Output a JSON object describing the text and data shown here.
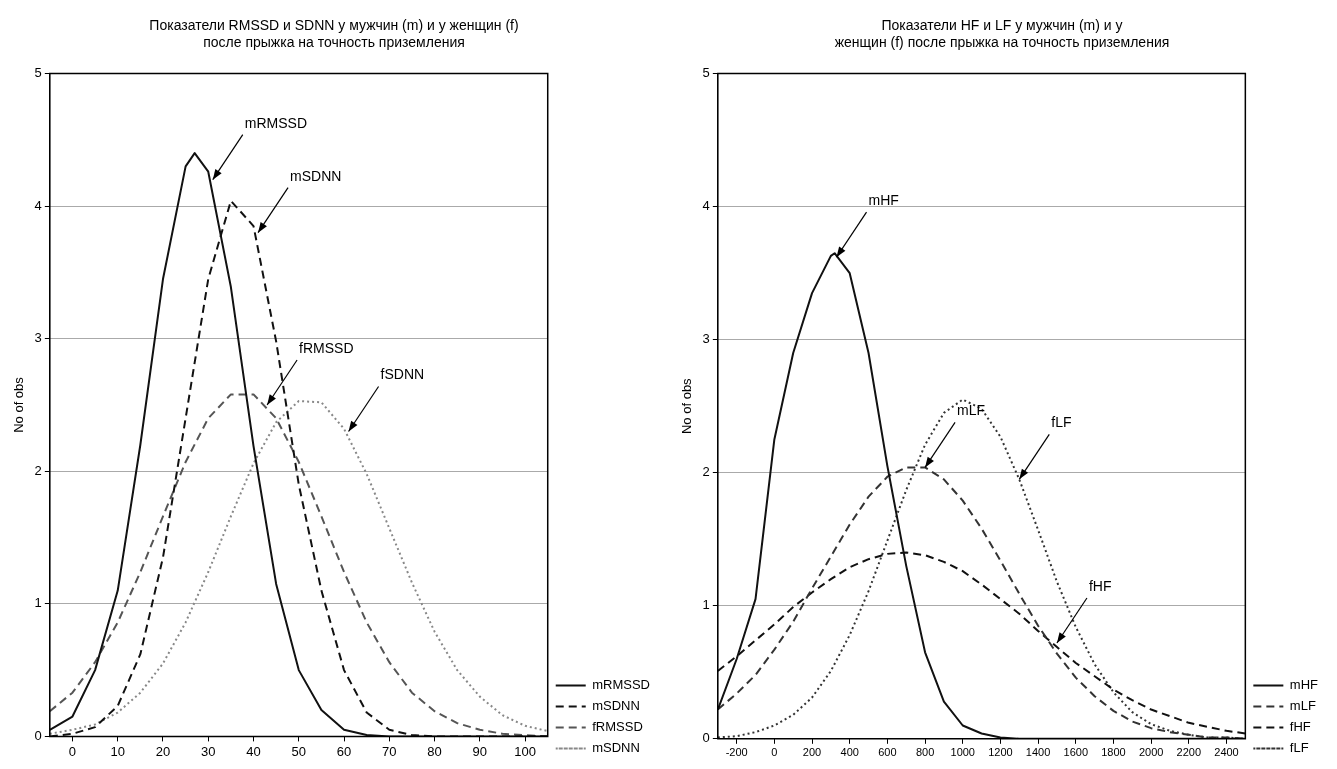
{
  "chart_data": [
    {
      "type": "line",
      "title": "Показатели RMSSD и SDNN у мужчин (m) и у женщин (f)\nпосле прыжка на точность приземления",
      "ylabel": "No of obs",
      "xlim": [
        -5,
        105
      ],
      "xticks": [
        0,
        10,
        20,
        30,
        40,
        50,
        60,
        70,
        80,
        90,
        100
      ],
      "ylim": [
        0,
        5
      ],
      "yticks": [
        0,
        1,
        2,
        3,
        4,
        5
      ],
      "grid": "y",
      "legend": "bottom right",
      "series": [
        {
          "name": "mRMSSD",
          "color": "#111111",
          "line_style": "solid",
          "x": [
            -5,
            0,
            5,
            10,
            15,
            20,
            25,
            27,
            30,
            35,
            40,
            45,
            50,
            55,
            60,
            65,
            70,
            75,
            80,
            85,
            90,
            95,
            100,
            105
          ],
          "values": [
            0.05,
            0.15,
            0.5,
            1.1,
            2.2,
            3.45,
            4.3,
            4.4,
            4.26,
            3.39,
            2.19,
            1.15,
            0.5,
            0.2,
            0.05,
            0.01,
            0,
            0,
            0,
            0,
            0,
            0,
            0,
            0
          ]
        },
        {
          "name": "mSDNN",
          "color": "#111111",
          "line_style": "dashed",
          "x": [
            -5,
            0,
            5,
            10,
            15,
            20,
            25,
            30,
            35,
            40,
            45,
            50,
            55,
            60,
            65,
            70,
            75,
            80,
            85,
            90,
            95,
            100,
            105
          ],
          "values": [
            0,
            0.02,
            0.07,
            0.23,
            0.62,
            1.35,
            2.4,
            3.45,
            4.04,
            3.85,
            2.98,
            1.9,
            1.1,
            0.5,
            0.18,
            0.05,
            0.01,
            0,
            0,
            0,
            0,
            0,
            0
          ]
        },
        {
          "name": "fRMSSD",
          "color": "#555555",
          "line_style": "dashed",
          "x": [
            -5,
            0,
            5,
            10,
            15,
            20,
            25,
            30,
            35,
            40,
            45,
            50,
            55,
            60,
            65,
            70,
            75,
            80,
            85,
            90,
            95,
            100,
            105
          ],
          "values": [
            0.19,
            0.33,
            0.56,
            0.86,
            1.24,
            1.66,
            2.07,
            2.4,
            2.58,
            2.58,
            2.4,
            2.07,
            1.66,
            1.24,
            0.86,
            0.56,
            0.33,
            0.19,
            0.1,
            0.05,
            0.02,
            0.01,
            0
          ]
        },
        {
          "name": "mSDNN",
          "color": "#888888",
          "line_style": "dotted",
          "x": [
            -5,
            0,
            5,
            10,
            15,
            20,
            25,
            30,
            35,
            40,
            45,
            50,
            55,
            60,
            65,
            70,
            75,
            80,
            85,
            90,
            95,
            100,
            105
          ],
          "values": [
            0.02,
            0.05,
            0.09,
            0.18,
            0.33,
            0.55,
            0.86,
            1.24,
            1.66,
            2.06,
            2.37,
            2.53,
            2.52,
            2.32,
            1.98,
            1.57,
            1.16,
            0.79,
            0.5,
            0.3,
            0.16,
            0.08,
            0.04
          ]
        }
      ],
      "annotations": [
        {
          "text": "mRMSSD",
          "x": 31,
          "y": 4.2
        },
        {
          "text": "mSDNN",
          "x": 41,
          "y": 3.8
        },
        {
          "text": "fRMSSD",
          "x": 43,
          "y": 2.5
        },
        {
          "text": "fSDNN",
          "x": 61,
          "y": 2.3
        }
      ]
    },
    {
      "type": "line",
      "title": "Показатели HF и LF у мужчин (m) и у\nженщин (f) после прыжка на точность приземления",
      "ylabel": "No of obs",
      "xlim": [
        -300,
        2500
      ],
      "xticks": [
        -200,
        0,
        200,
        400,
        600,
        800,
        1000,
        1200,
        1400,
        1600,
        1800,
        2000,
        2200,
        2400
      ],
      "ylim": [
        0,
        5
      ],
      "yticks": [
        0,
        1,
        2,
        3,
        4,
        5
      ],
      "grid": "y",
      "legend": "bottom right",
      "series": [
        {
          "name": "mHF",
          "color": "#111111",
          "line_style": "solid",
          "x": [
            -300,
            -200,
            -100,
            0,
            100,
            200,
            300,
            320,
            400,
            500,
            600,
            700,
            800,
            900,
            1000,
            1100,
            1200,
            1300,
            1400,
            1500,
            1600,
            1700,
            1800,
            1900,
            2000,
            2100,
            2200,
            2300,
            2400,
            2500
          ],
          "values": [
            0.22,
            0.6,
            1.05,
            2.25,
            2.9,
            3.35,
            3.63,
            3.65,
            3.5,
            2.9,
            2.05,
            1.3,
            0.65,
            0.28,
            0.1,
            0.04,
            0.01,
            0,
            0,
            0,
            0,
            0,
            0,
            0,
            0,
            0,
            0,
            0,
            0,
            0
          ]
        },
        {
          "name": "mLF",
          "color": "#333333",
          "line_style": "dashed",
          "x": [
            -300,
            -200,
            -100,
            0,
            100,
            200,
            300,
            400,
            500,
            600,
            700,
            800,
            900,
            1000,
            1100,
            1200,
            1300,
            1400,
            1500,
            1600,
            1700,
            1800,
            1900,
            2000,
            2100,
            2200,
            2300,
            2400,
            2500
          ],
          "values": [
            0.22,
            0.34,
            0.48,
            0.67,
            0.88,
            1.13,
            1.37,
            1.61,
            1.82,
            1.97,
            2.04,
            2.04,
            1.95,
            1.79,
            1.58,
            1.34,
            1.09,
            0.85,
            0.64,
            0.46,
            0.32,
            0.21,
            0.13,
            0.08,
            0.05,
            0.03,
            0.01,
            0.01,
            0
          ]
        },
        {
          "name": "fHF",
          "color": "#111111",
          "line_style": "dashed",
          "x": [
            -300,
            -200,
            -100,
            0,
            100,
            200,
            300,
            400,
            500,
            600,
            700,
            800,
            900,
            1000,
            1100,
            1200,
            1300,
            1400,
            1500,
            1600,
            1700,
            1800,
            1900,
            2000,
            2100,
            2200,
            2300,
            2400,
            2500
          ],
          "values": [
            0.51,
            0.62,
            0.74,
            0.86,
            0.99,
            1.1,
            1.2,
            1.29,
            1.35,
            1.39,
            1.4,
            1.38,
            1.33,
            1.26,
            1.16,
            1.05,
            0.94,
            0.81,
            0.69,
            0.57,
            0.47,
            0.37,
            0.29,
            0.22,
            0.17,
            0.12,
            0.09,
            0.06,
            0.04
          ]
        },
        {
          "name": "fLF",
          "color": "#333333",
          "line_style": "dotted",
          "x": [
            -300,
            -200,
            -100,
            0,
            100,
            200,
            300,
            400,
            500,
            600,
            700,
            800,
            900,
            1000,
            1100,
            1200,
            1300,
            1400,
            1500,
            1600,
            1700,
            1800,
            1900,
            2000,
            2100,
            2200,
            2300,
            2400,
            2500
          ],
          "values": [
            0.01,
            0.02,
            0.05,
            0.1,
            0.18,
            0.31,
            0.51,
            0.78,
            1.11,
            1.49,
            1.87,
            2.21,
            2.45,
            2.55,
            2.48,
            2.27,
            1.95,
            1.57,
            1.18,
            0.84,
            0.56,
            0.35,
            0.2,
            0.11,
            0.06,
            0.03,
            0.01,
            0.01,
            0
          ]
        }
      ],
      "annotations": [
        {
          "text": "mHF",
          "x": 330,
          "y": 3.62
        },
        {
          "text": "mLF",
          "x": 800,
          "y": 2.04
        },
        {
          "text": "fLF",
          "x": 1300,
          "y": 1.95
        },
        {
          "text": "fHF",
          "x": 1500,
          "y": 0.72
        }
      ]
    }
  ]
}
